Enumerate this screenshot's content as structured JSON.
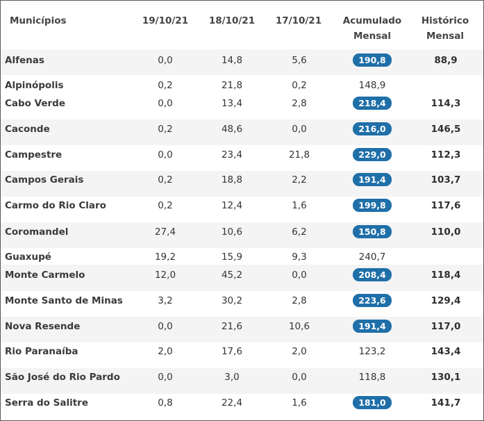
{
  "table": {
    "headers": {
      "municipio": "Municípios",
      "d1": "19/10/21",
      "d2": "18/10/21",
      "d3": "17/10/21",
      "acum_line1": "Acumulado",
      "acum_line2": "Mensal",
      "hist_line1": "Histórico",
      "hist_line2": "Mensal"
    },
    "rows": [
      {
        "name": "Alfenas",
        "d1": "0,0",
        "d2": "14,8",
        "d3": "5,6",
        "acum": "190,8",
        "highlight": true,
        "hist": "88,9"
      },
      {
        "name": "Alpinópolis",
        "d1": "0,2",
        "d2": "21,8",
        "d3": "0,2",
        "acum": "148,9",
        "highlight": false,
        "hist": ""
      },
      {
        "name": "Cabo Verde",
        "d1": "0,0",
        "d2": "13,4",
        "d3": "2,8",
        "acum": "218,4",
        "highlight": true,
        "hist": "114,3"
      },
      {
        "name": "Caconde",
        "d1": "0,2",
        "d2": "48,6",
        "d3": "0,0",
        "acum": "216,0",
        "highlight": true,
        "hist": "146,5"
      },
      {
        "name": "Campestre",
        "d1": "0,0",
        "d2": "23,4",
        "d3": "21,8",
        "acum": "229,0",
        "highlight": true,
        "hist": "112,3"
      },
      {
        "name": "Campos Gerais",
        "d1": "0,2",
        "d2": "18,8",
        "d3": "2,2",
        "acum": "191,4",
        "highlight": true,
        "hist": "103,7"
      },
      {
        "name": "Carmo do Rio Claro",
        "d1": "0,2",
        "d2": "12,4",
        "d3": "1,6",
        "acum": "199,8",
        "highlight": true,
        "hist": "117,6"
      },
      {
        "name": "Coromandel",
        "d1": "27,4",
        "d2": "10,6",
        "d3": "6,2",
        "acum": "150,8",
        "highlight": true,
        "hist": "110,0"
      },
      {
        "name": "Guaxupé",
        "d1": "19,2",
        "d2": "15,9",
        "d3": "9,3",
        "acum": "240,7",
        "highlight": false,
        "hist": ""
      },
      {
        "name": "Monte Carmelo",
        "d1": "12,0",
        "d2": "45,2",
        "d3": "0,0",
        "acum": "208,4",
        "highlight": true,
        "hist": "118,4"
      },
      {
        "name": "Monte Santo de Minas",
        "d1": "3,2",
        "d2": "30,2",
        "d3": "2,8",
        "acum": "223,6",
        "highlight": true,
        "hist": "129,4"
      },
      {
        "name": "Nova Resende",
        "d1": "0,0",
        "d2": "21,6",
        "d3": "10,6",
        "acum": "191,4",
        "highlight": true,
        "hist": "117,0"
      },
      {
        "name": "Rio Paranaíba",
        "d1": "2,0",
        "d2": "17,6",
        "d3": "2,0",
        "acum": "123,2",
        "highlight": false,
        "hist": "143,4"
      },
      {
        "name": "São José do Rio Pardo",
        "d1": "0,0",
        "d2": "3,0",
        "d3": "0,0",
        "acum": "118,8",
        "highlight": false,
        "hist": "130,1"
      },
      {
        "name": "Serra do Salitre",
        "d1": "0,8",
        "d2": "22,4",
        "d3": "1,6",
        "acum": "181,0",
        "highlight": true,
        "hist": "141,7"
      }
    ]
  },
  "colors": {
    "badge": "#1f6fa8",
    "alt_row": "#f4f4f4",
    "border": "#5a5a5a"
  }
}
